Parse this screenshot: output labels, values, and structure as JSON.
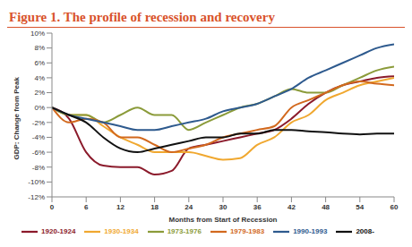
{
  "chart_data": {
    "type": "line",
    "title": "Figure 1. The profile of recession and recovery",
    "x_label": "Months from Start of Recession",
    "y_label": "GDP: Change from Peak",
    "x": [
      0,
      3,
      6,
      9,
      12,
      15,
      18,
      21,
      24,
      27,
      30,
      33,
      36,
      39,
      42,
      45,
      48,
      51,
      54,
      57,
      60
    ],
    "series": [
      {
        "name": "1920-1924",
        "color": "#8b1a2b",
        "values": [
          0,
          -1.5,
          -6,
          -7.8,
          -8,
          -8,
          -9,
          -8.5,
          -5.5,
          -5,
          -4.5,
          -4,
          -3.5,
          -3,
          -1.5,
          0.5,
          2,
          3,
          3.5,
          4,
          4.2
        ]
      },
      {
        "name": "1930-1934",
        "color": "#f0a830",
        "values": [
          0,
          -1,
          -1,
          -2.5,
          -4,
          -5,
          -6,
          -6,
          -6,
          -6.5,
          -7,
          -6.8,
          -5,
          -4,
          -2,
          -1,
          1,
          2,
          3,
          3.5,
          4
        ]
      },
      {
        "name": "1973-1976",
        "color": "#8b9b3a",
        "values": [
          0,
          -1,
          -1,
          -2,
          -1,
          0,
          -1,
          -1,
          -3,
          -2,
          -1,
          0,
          0.5,
          1.5,
          2.5,
          2,
          2,
          3,
          4,
          5,
          5.5
        ]
      },
      {
        "name": "1979-1983",
        "color": "#d2691e",
        "values": [
          0,
          -2,
          -1.5,
          -2,
          -4,
          -4,
          -5,
          -6,
          -5.5,
          -5,
          -4,
          -3.5,
          -3,
          -2.5,
          0,
          1,
          2,
          3,
          3.5,
          3.2,
          3
        ]
      },
      {
        "name": "1990-1993",
        "color": "#2e5a8e",
        "values": [
          0,
          -1,
          -1.5,
          -2,
          -2.5,
          -3,
          -3,
          -2.5,
          -2,
          -1.5,
          -0.5,
          0,
          0.5,
          1.5,
          2.5,
          4,
          5,
          6,
          7,
          8,
          8.5
        ]
      },
      {
        "name": "2008-",
        "color": "#111111",
        "values": [
          0,
          -1,
          -2,
          -4,
          -5.5,
          -6,
          -5.5,
          -5,
          -4.5,
          -4,
          -4,
          -3.5,
          -3.5,
          -3,
          -3,
          -3.2,
          -3.3,
          -3.5,
          -3.6,
          -3.5,
          -3.5
        ]
      }
    ],
    "xlim": [
      0,
      60
    ],
    "xticks": [
      0,
      6,
      12,
      18,
      24,
      30,
      36,
      42,
      48,
      54,
      60
    ],
    "ylim": [
      -12,
      10
    ],
    "yticks": [
      {
        "value": -12,
        "label": "-12%"
      },
      {
        "value": -10,
        "label": "-10%"
      },
      {
        "value": -8,
        "label": "-8%"
      },
      {
        "value": -6,
        "label": "-6%"
      },
      {
        "value": -4,
        "label": "-4%"
      },
      {
        "value": -2,
        "label": "-2%"
      },
      {
        "value": 0,
        "label": "0%"
      },
      {
        "value": 2,
        "label": "2%"
      },
      {
        "value": 4,
        "label": "4%"
      },
      {
        "value": 6,
        "label": "6%"
      },
      {
        "value": 8,
        "label": "8%"
      },
      {
        "value": 10,
        "label": "10%"
      }
    ],
    "grid": false,
    "legend": "bottom"
  }
}
